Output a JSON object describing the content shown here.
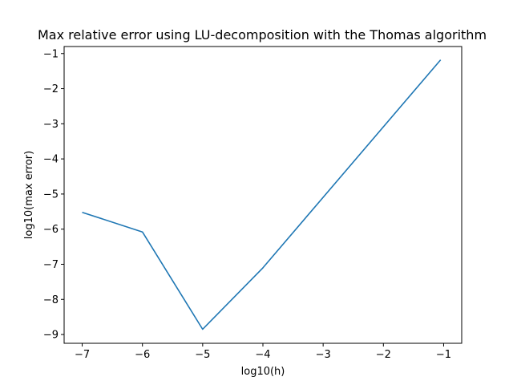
{
  "chart_data": {
    "type": "line",
    "title": "Max relative error using LU-decomposition with the Thomas algorithm",
    "xlabel": "log10(h)",
    "ylabel": "log10(max error)",
    "xlim": [
      -7.3,
      -0.7
    ],
    "ylim": [
      -9.25,
      -0.8
    ],
    "x_ticks": [
      -7,
      -6,
      -5,
      -4,
      -3,
      -2,
      -1
    ],
    "y_ticks": [
      -9,
      -8,
      -7,
      -6,
      -5,
      -4,
      -3,
      -2,
      -1
    ],
    "x_tick_labels": [
      "−7",
      "−6",
      "−5",
      "−4",
      "−3",
      "−2",
      "−1"
    ],
    "y_tick_labels": [
      "−9",
      "−8",
      "−7",
      "−6",
      "−5",
      "−4",
      "−3",
      "−2",
      "−1"
    ],
    "grid": false,
    "series": [
      {
        "color": "#1f77b4",
        "x": [
          -7,
          -6,
          -5,
          -4.0,
          -1.05
        ],
        "y": [
          -5.52,
          -6.08,
          -8.85,
          -7.1,
          -1.18
        ]
      }
    ]
  }
}
